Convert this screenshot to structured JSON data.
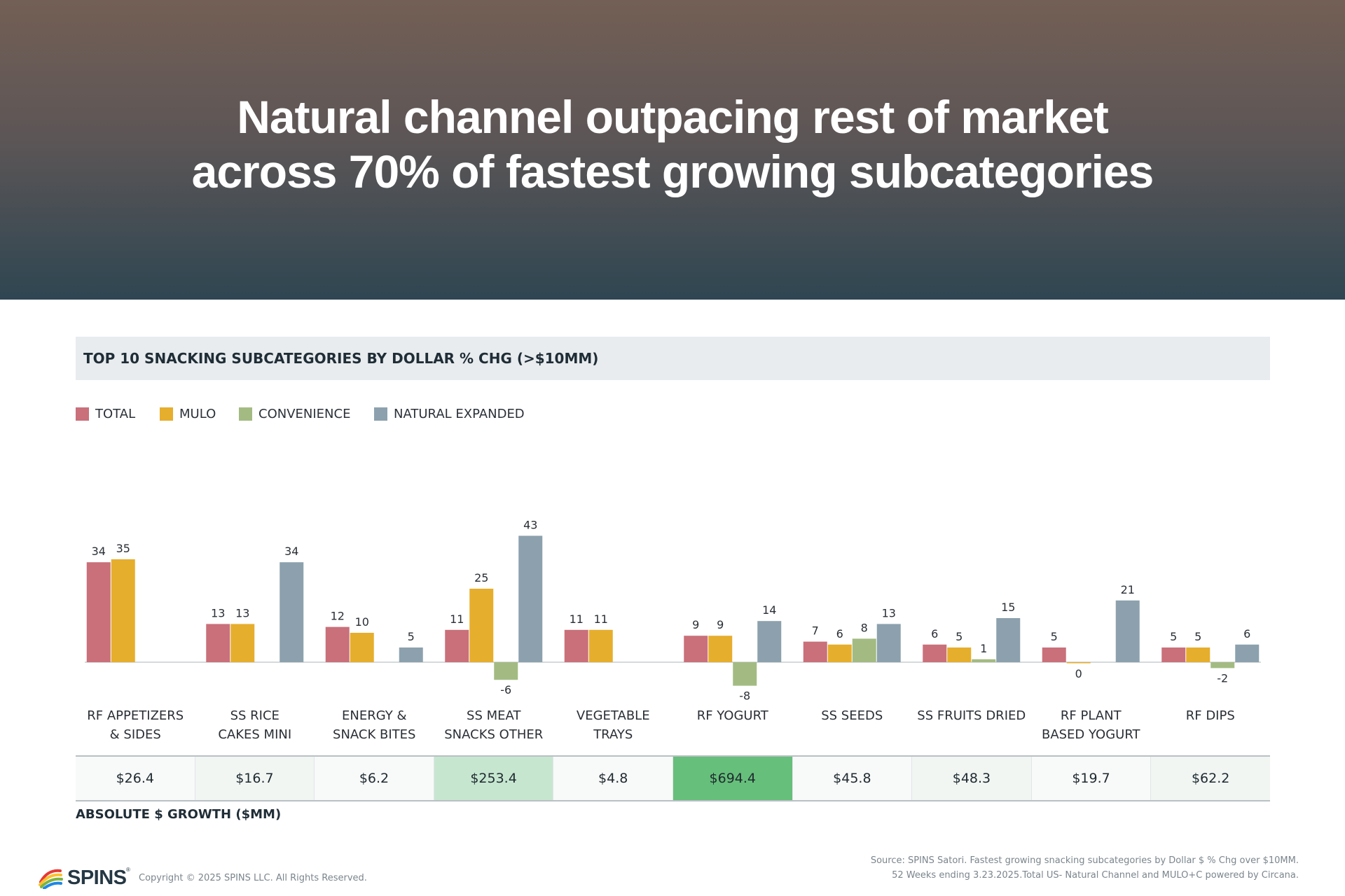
{
  "hero": {
    "title_line1": "Natural channel outpacing rest of market",
    "title_line2": "across 70% of fastest growing subcategories"
  },
  "panel": {
    "title": "TOP 10 SNACKING SUBCATEGORIES BY DOLLAR % CHG (>$10MM)"
  },
  "legend": [
    {
      "label": "TOTAL",
      "color": "#c9707a"
    },
    {
      "label": "MULO",
      "color": "#e6ae2d"
    },
    {
      "label": "CONVENIENCE",
      "color": "#a3bb82"
    },
    {
      "label": "NATURAL EXPANDED",
      "color": "#8ca1ad"
    }
  ],
  "chart_data": {
    "type": "bar",
    "title": "TOP 10 SNACKING SUBCATEGORIES BY DOLLAR % CHG (>$10MM)",
    "categories": [
      [
        "RF APPETIZERS",
        "& SIDES"
      ],
      [
        "SS RICE",
        "CAKES MINI"
      ],
      [
        "ENERGY &",
        "SNACK BITES"
      ],
      [
        "SS MEAT",
        "SNACKS OTHER"
      ],
      [
        "VEGETABLE",
        "TRAYS"
      ],
      [
        "RF YOGURT"
      ],
      [
        "SS SEEDS"
      ],
      [
        "SS FRUITS DRIED"
      ],
      [
        "RF PLANT",
        "BASED YOGURT"
      ],
      [
        "RF DIPS"
      ]
    ],
    "series": [
      {
        "name": "TOTAL",
        "color": "#c9707a",
        "values": [
          34,
          13,
          12,
          11,
          11,
          9,
          7,
          6,
          5,
          5
        ]
      },
      {
        "name": "MULO",
        "color": "#e6ae2d",
        "values": [
          35,
          13,
          10,
          25,
          11,
          9,
          6,
          5,
          0,
          5
        ]
      },
      {
        "name": "CONVENIENCE",
        "color": "#a3bb82",
        "values": [
          null,
          null,
          null,
          -6,
          null,
          -8,
          8,
          1,
          null,
          -2
        ]
      },
      {
        "name": "NATURAL EXPANDED",
        "color": "#8ca1ad",
        "values": [
          null,
          34,
          5,
          43,
          null,
          14,
          13,
          15,
          21,
          6
        ]
      }
    ],
    "xlabel": "",
    "ylabel": "",
    "ylim": [
      -10,
      45
    ],
    "grid": false,
    "legend_position": "top-left",
    "data_labels": true
  },
  "absolute_growth": {
    "caption": "ABSOLUTE $ GROWTH ($MM)",
    "values": [
      "$26.4",
      "$16.7",
      "$6.2",
      "$253.4",
      "$4.8",
      "$694.4",
      "$45.8",
      "$48.3",
      "$19.7",
      "$62.2"
    ],
    "highlight": [
      false,
      false,
      false,
      "light",
      false,
      "strong",
      false,
      false,
      false,
      false
    ],
    "colors": {
      "base": "#f8f9f9",
      "faint": "#f1f6f3",
      "light": "#c6e6d0",
      "strong": "#66bf7a"
    }
  },
  "footer": {
    "brand": "SPINS",
    "brand_mark": "®",
    "copyright": "Copyright © 2025 SPINS LLC. All Rights Reserved.",
    "source_line1": "Source: SPINS Satori. Fastest growing snacking subcategories by Dollar $ % Chg over $10MM.",
    "source_line2": "52 Weeks ending 3.23.2025.Total US- Natural Channel and MULO+C powered by Circana."
  }
}
